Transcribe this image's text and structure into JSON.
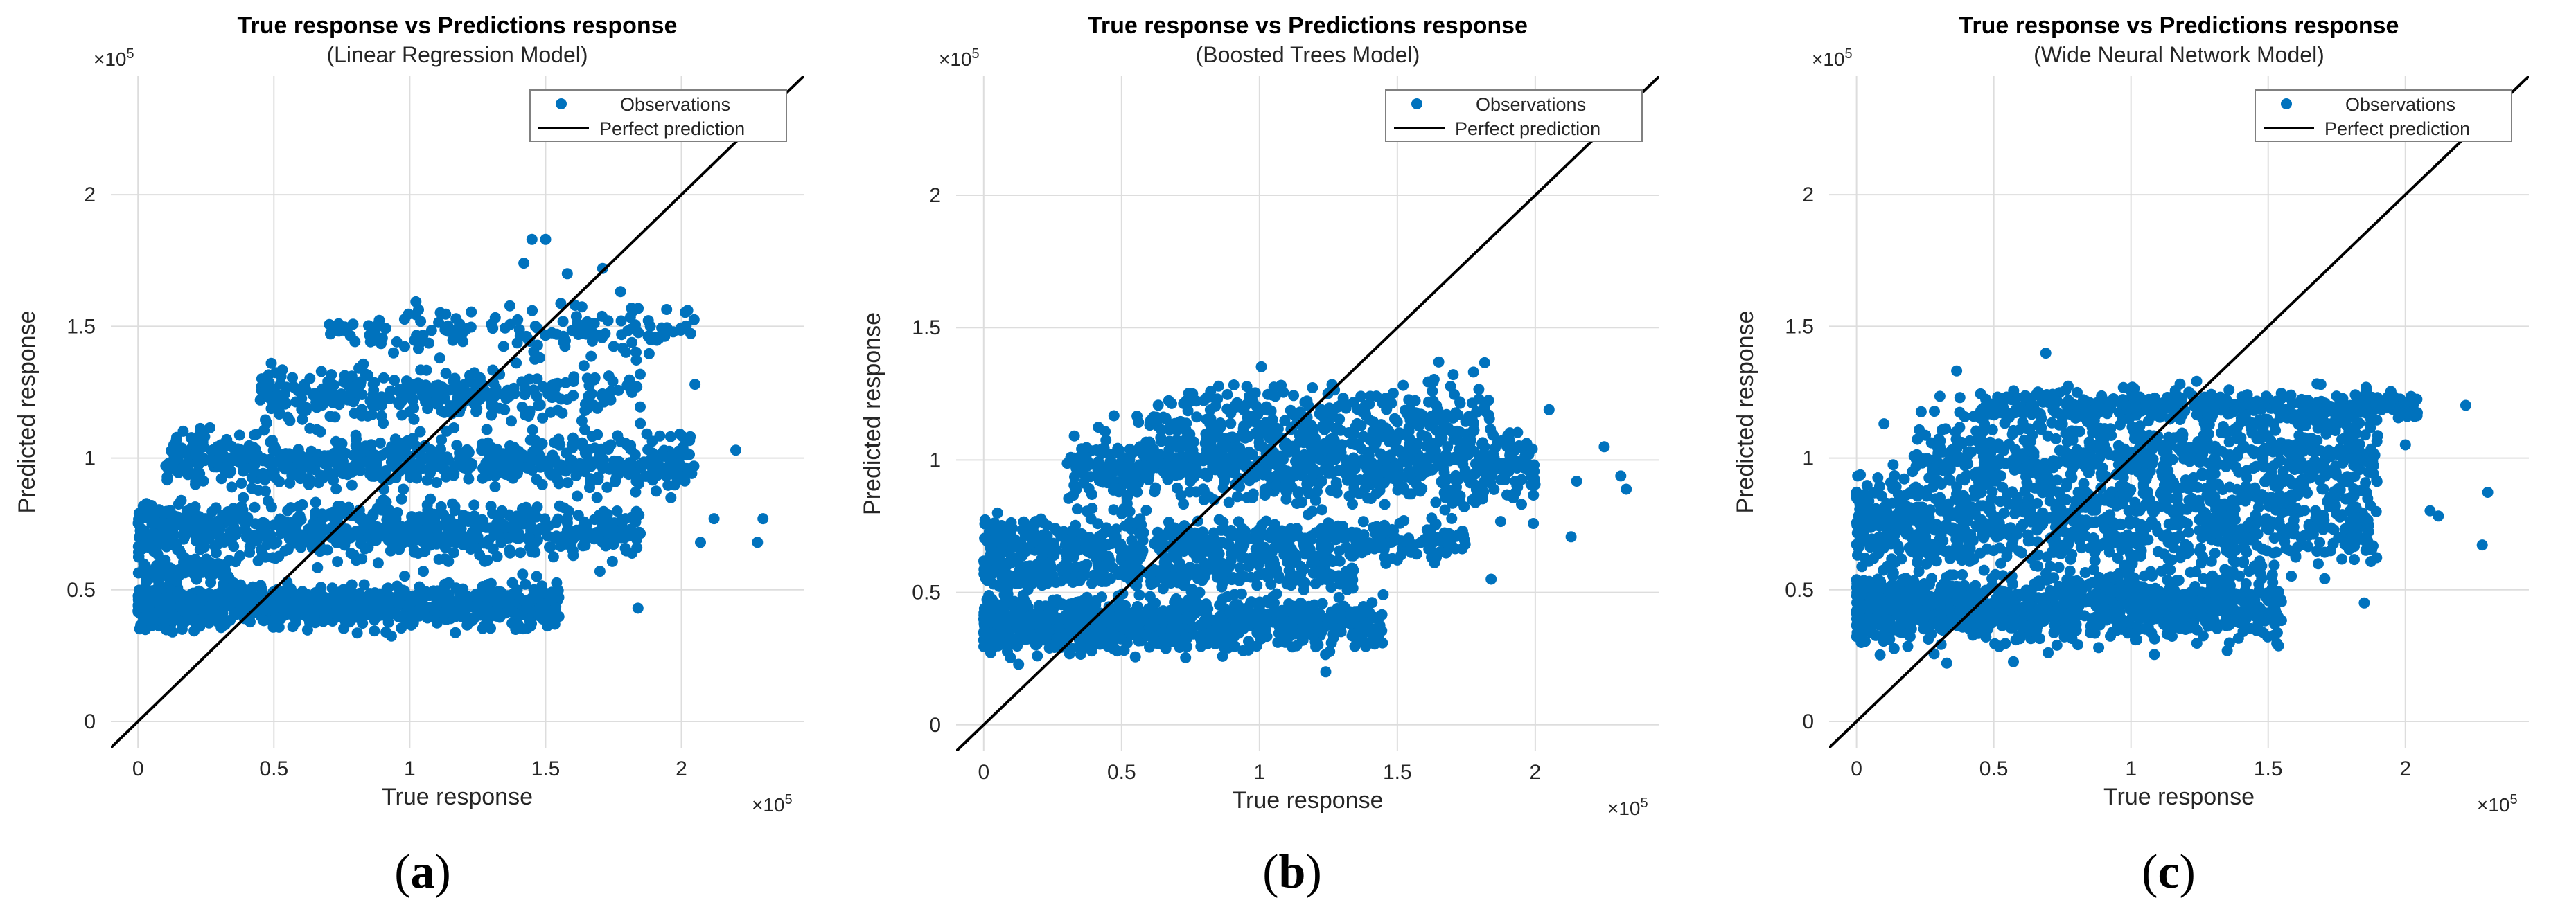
{
  "figure": {
    "panel_labels": [
      {
        "open": "(",
        "letter": "a",
        "close": ")"
      },
      {
        "open": "(",
        "letter": "b",
        "close": ")"
      },
      {
        "open": "(",
        "letter": "c",
        "close": ")"
      }
    ]
  },
  "colors": {
    "observations": "#0072BD",
    "perfect": "#000000",
    "grid": "#DDDDDD",
    "axis": "#333333",
    "text": "#262626"
  },
  "chart_data": [
    {
      "type": "scatter",
      "title": "True response vs Predictions response",
      "subtitle": "(Linear Regression Model)",
      "xlabel": "True response",
      "ylabel": "Predicted response",
      "x_exponent": "×10",
      "x_exponent_power": "5",
      "y_exponent": "×10",
      "y_exponent_power": "5",
      "xlim": [
        -0.1,
        2.45
      ],
      "ylim": [
        -0.1,
        2.45
      ],
      "xticks": [
        0,
        0.5,
        1,
        1.5,
        2
      ],
      "xtick_labels": [
        "0",
        "0.5",
        "1",
        "1.5",
        "2"
      ],
      "yticks": [
        0,
        0.5,
        1,
        1.5,
        2
      ],
      "ytick_labels": [
        "0",
        "0.5",
        "1",
        "1.5",
        "2"
      ],
      "grid": true,
      "legend": {
        "location": "top-right",
        "entries": [
          "Observations",
          "Perfect prediction"
        ]
      },
      "perfect_line": {
        "x": [
          -0.1,
          2.45
        ],
        "y": [
          -0.1,
          2.45
        ]
      },
      "clusters": [
        {
          "x_min": 0.0,
          "x_max": 1.55,
          "y_center": 0.44,
          "y_spread": 0.04,
          "count": 900,
          "skew": 1.4
        },
        {
          "x_min": 0.0,
          "x_max": 0.35,
          "y_center": 0.58,
          "y_spread": 0.02,
          "count": 80,
          "skew": 1.0
        },
        {
          "x_min": 0.0,
          "x_max": 1.85,
          "y_center": 0.72,
          "y_spread": 0.05,
          "count": 700,
          "skew": 1.2
        },
        {
          "x_min": 0.1,
          "x_max": 2.05,
          "y_center": 0.99,
          "y_spread": 0.05,
          "count": 600,
          "skew": 1.1
        },
        {
          "x_min": 0.45,
          "x_max": 1.85,
          "y_center": 1.24,
          "y_spread": 0.05,
          "count": 300,
          "skew": 1.0
        },
        {
          "x_min": 0.7,
          "x_max": 2.05,
          "y_center": 1.49,
          "y_spread": 0.05,
          "count": 150,
          "skew": 1.0
        }
      ],
      "points": [
        {
          "x": 1.42,
          "y": 1.74
        },
        {
          "x": 1.45,
          "y": 1.83
        },
        {
          "x": 1.5,
          "y": 1.83
        },
        {
          "x": 1.58,
          "y": 1.7
        },
        {
          "x": 1.71,
          "y": 1.72
        },
        {
          "x": 2.3,
          "y": 0.77
        },
        {
          "x": 2.28,
          "y": 0.68
        },
        {
          "x": 2.2,
          "y": 1.03
        },
        {
          "x": 2.12,
          "y": 0.77
        },
        {
          "x": 1.84,
          "y": 0.43
        },
        {
          "x": 2.07,
          "y": 0.68
        },
        {
          "x": 1.7,
          "y": 0.57
        },
        {
          "x": 0.05,
          "y": 0.82
        },
        {
          "x": 1.05,
          "y": 0.57
        },
        {
          "x": 2.05,
          "y": 1.28
        }
      ]
    },
    {
      "type": "scatter",
      "title": "True response vs Predictions response",
      "subtitle": "(Boosted Trees Model)",
      "xlabel": "True response",
      "ylabel": "Predicted response",
      "x_exponent": "×10",
      "x_exponent_power": "5",
      "y_exponent": "×10",
      "y_exponent_power": "5",
      "xlim": [
        -0.1,
        2.45
      ],
      "ylim": [
        -0.1,
        2.45
      ],
      "xticks": [
        0,
        0.5,
        1,
        1.5,
        2
      ],
      "xtick_labels": [
        "0",
        "0.5",
        "1",
        "1.5",
        "2"
      ],
      "yticks": [
        0,
        0.5,
        1,
        1.5,
        2
      ],
      "ytick_labels": [
        "0",
        "0.5",
        "1",
        "1.5",
        "2"
      ],
      "grid": true,
      "legend": {
        "location": "top-right",
        "entries": [
          "Observations",
          "Perfect prediction"
        ]
      },
      "perfect_line": {
        "x": [
          -0.1,
          2.45
        ],
        "y": [
          -0.1,
          2.45
        ]
      },
      "clusters": [
        {
          "x_min": 0.0,
          "x_max": 1.45,
          "y_center": 0.38,
          "y_spread": 0.05,
          "count": 1000,
          "skew": 1.4
        },
        {
          "x_min": 0.0,
          "x_max": 1.35,
          "y_center": 0.57,
          "y_spread": 0.03,
          "count": 300,
          "skew": 1.2
        },
        {
          "x_min": 0.0,
          "x_max": 1.75,
          "y_center": 0.69,
          "y_spread": 0.04,
          "count": 500,
          "skew": 1.2
        },
        {
          "x_min": 0.3,
          "x_max": 2.0,
          "y_center": 0.97,
          "y_spread": 0.07,
          "count": 700,
          "skew": 1.0
        },
        {
          "x_min": 0.6,
          "x_max": 1.85,
          "y_center": 1.15,
          "y_spread": 0.07,
          "count": 300,
          "skew": 1.0
        }
      ],
      "points": [
        {
          "x": 2.33,
          "y": 0.89
        },
        {
          "x": 2.31,
          "y": 0.94
        },
        {
          "x": 2.25,
          "y": 1.05
        },
        {
          "x": 2.15,
          "y": 0.92
        },
        {
          "x": 2.13,
          "y": 0.71
        },
        {
          "x": 1.84,
          "y": 0.55
        },
        {
          "x": 2.05,
          "y": 1.19
        },
        {
          "x": 0.05,
          "y": 0.8
        },
        {
          "x": 1.65,
          "y": 1.37
        },
        {
          "x": 0.7,
          "y": 1.05
        }
      ]
    },
    {
      "type": "scatter",
      "title": "True response vs Predictions response",
      "subtitle": "(Wide Neural Network Model)",
      "xlabel": "True response",
      "ylabel": "Predicted response",
      "x_exponent": "×10",
      "x_exponent_power": "5",
      "y_exponent": "×10",
      "y_exponent_power": "5",
      "xlim": [
        -0.1,
        2.45
      ],
      "ylim": [
        -0.1,
        2.45
      ],
      "xticks": [
        0,
        0.5,
        1,
        1.5,
        2
      ],
      "xtick_labels": [
        "0",
        "0.5",
        "1",
        "1.5",
        "2"
      ],
      "yticks": [
        0,
        0.5,
        1,
        1.5,
        2
      ],
      "ytick_labels": [
        "0",
        "0.5",
        "1",
        "1.5",
        "2"
      ],
      "grid": true,
      "legend": {
        "location": "top-right",
        "entries": [
          "Observations",
          "Perfect prediction"
        ]
      },
      "perfect_line": {
        "x": [
          -0.1,
          2.45
        ],
        "y": [
          -0.1,
          2.45
        ]
      },
      "clusters": [
        {
          "x_min": 0.0,
          "x_max": 1.55,
          "y_center": 0.43,
          "y_spread": 0.06,
          "count": 1100,
          "skew": 1.3
        },
        {
          "x_min": 0.0,
          "x_max": 1.9,
          "y_center": 0.75,
          "y_spread": 0.09,
          "count": 900,
          "skew": 1.2
        },
        {
          "x_min": 0.2,
          "x_max": 1.9,
          "y_center": 1.0,
          "y_spread": 0.09,
          "count": 700,
          "skew": 1.0
        },
        {
          "x_min": 0.45,
          "x_max": 2.05,
          "y_center": 1.2,
          "y_spread": 0.03,
          "count": 400,
          "skew": 1.0
        }
      ],
      "points": [
        {
          "x": 2.3,
          "y": 0.87
        },
        {
          "x": 2.28,
          "y": 0.67
        },
        {
          "x": 2.22,
          "y": 1.2
        },
        {
          "x": 2.12,
          "y": 0.78
        },
        {
          "x": 2.09,
          "y": 0.8
        },
        {
          "x": 1.85,
          "y": 0.45
        },
        {
          "x": 1.6,
          "y": 0.63
        },
        {
          "x": 2.0,
          "y": 1.05
        },
        {
          "x": 0.1,
          "y": 1.13
        }
      ]
    }
  ]
}
